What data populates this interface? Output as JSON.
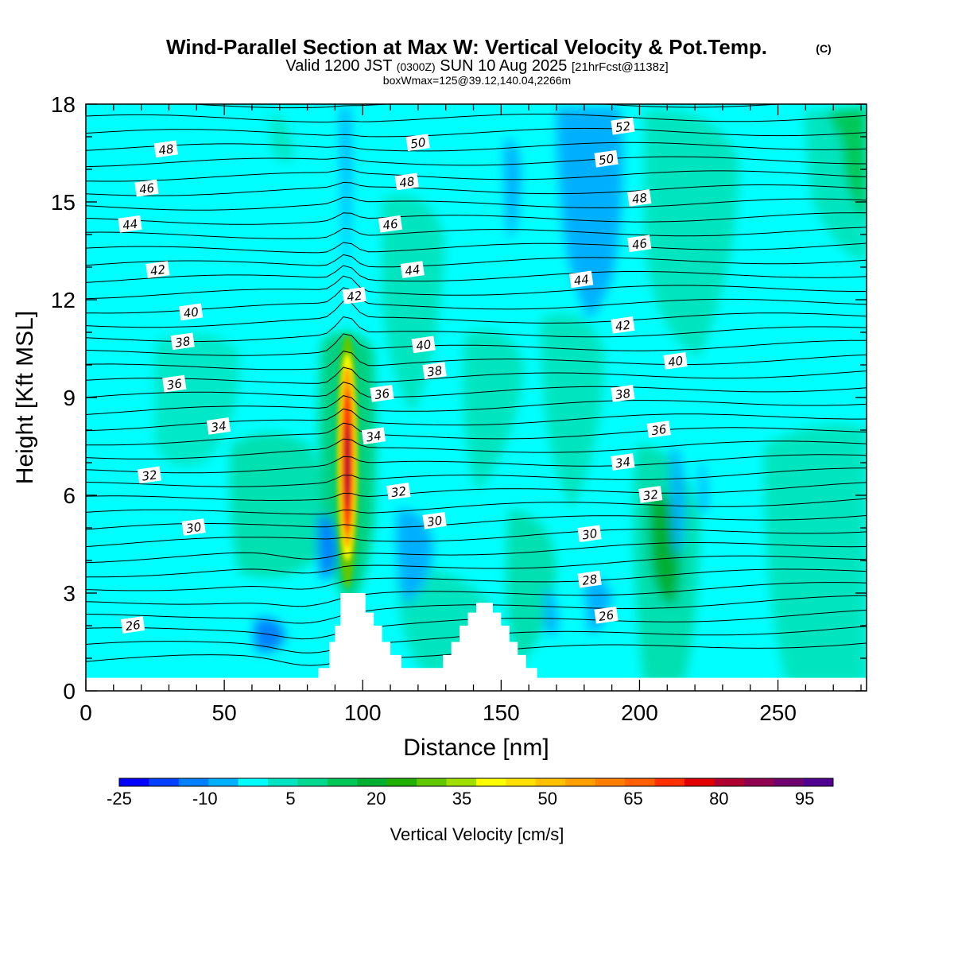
{
  "title": {
    "main": "Wind-Parallel Section at Max W: Vertical Velocity & Pot.Temp.",
    "copyright": "(C)",
    "valid_prefix": "Valid 1200 JST",
    "valid_utc": "(0300Z)",
    "valid_date": "SUN 10 Aug 2025",
    "forecast": "[21hrFcst@1138z]",
    "box_info": "boxWmax=125@39.12,140.04,2266m"
  },
  "chart_data": {
    "type": "heatmap",
    "title": "Wind-Parallel Section at Max W: Vertical Velocity & Pot.Temp.",
    "xlabel": "Distance [nm]",
    "ylabel": "Height [Kft MSL]",
    "xlim": [
      0,
      282
    ],
    "ylim": [
      0,
      18
    ],
    "x_ticks": [
      0,
      50,
      100,
      150,
      200,
      250
    ],
    "y_ticks": [
      0,
      3,
      6,
      9,
      12,
      15,
      18
    ],
    "colorbar": {
      "label": "Vertical Velocity [cm/s]",
      "ticks": [
        -25,
        -10,
        5,
        20,
        35,
        50,
        65,
        80,
        95
      ],
      "colors": [
        "#0000ff",
        "#0040ff",
        "#0080ff",
        "#00b0ff",
        "#00ffff",
        "#00e5c0",
        "#00d890",
        "#00c858",
        "#00b030",
        "#20b000",
        "#60c800",
        "#a0e000",
        "#ffff00",
        "#ffe000",
        "#ffc000",
        "#ffa000",
        "#ff8000",
        "#ff6000",
        "#ff3000",
        "#e00000",
        "#b00030",
        "#900050",
        "#700070",
        "#500090"
      ]
    },
    "terrain_profile": [
      [
        0,
        0.4
      ],
      [
        84,
        0.4
      ],
      [
        84,
        0.7
      ],
      [
        88,
        0.7
      ],
      [
        88,
        1.5
      ],
      [
        90,
        1.5
      ],
      [
        90,
        2.0
      ],
      [
        92,
        2.0
      ],
      [
        92,
        3.0
      ],
      [
        101,
        3.0
      ],
      [
        101,
        2.4
      ],
      [
        104,
        2.4
      ],
      [
        104,
        2.0
      ],
      [
        107,
        2.0
      ],
      [
        107,
        1.5
      ],
      [
        110,
        1.5
      ],
      [
        110,
        1.1
      ],
      [
        114,
        1.1
      ],
      [
        114,
        0.7
      ],
      [
        129,
        0.7
      ],
      [
        129,
        1.1
      ],
      [
        132,
        1.1
      ],
      [
        132,
        1.5
      ],
      [
        135,
        1.5
      ],
      [
        135,
        2.0
      ],
      [
        138,
        2.0
      ],
      [
        138,
        2.4
      ],
      [
        141,
        2.4
      ],
      [
        141,
        2.7
      ],
      [
        147,
        2.7
      ],
      [
        147,
        2.4
      ],
      [
        150,
        2.4
      ],
      [
        150,
        2.0
      ],
      [
        153,
        2.0
      ],
      [
        153,
        1.5
      ],
      [
        156,
        1.5
      ],
      [
        156,
        1.1
      ],
      [
        159,
        1.1
      ],
      [
        159,
        0.7
      ],
      [
        163,
        0.7
      ],
      [
        163,
        0.4
      ],
      [
        282,
        0.4
      ]
    ],
    "contour_labels": [
      {
        "text": "48",
        "x": 29,
        "y": 16.6
      },
      {
        "text": "46",
        "x": 22,
        "y": 15.4
      },
      {
        "text": "44",
        "x": 16,
        "y": 14.3
      },
      {
        "text": "42",
        "x": 26,
        "y": 12.9
      },
      {
        "text": "40",
        "x": 38,
        "y": 11.6
      },
      {
        "text": "38",
        "x": 35,
        "y": 10.7
      },
      {
        "text": "36",
        "x": 32,
        "y": 9.4
      },
      {
        "text": "34",
        "x": 48,
        "y": 8.1
      },
      {
        "text": "32",
        "x": 23,
        "y": 6.6
      },
      {
        "text": "30",
        "x": 39,
        "y": 5.0
      },
      {
        "text": "26",
        "x": 17,
        "y": 2.0
      },
      {
        "text": "50",
        "x": 120,
        "y": 16.8
      },
      {
        "text": "48",
        "x": 116,
        "y": 15.6
      },
      {
        "text": "46",
        "x": 110,
        "y": 14.3
      },
      {
        "text": "44",
        "x": 118,
        "y": 12.9
      },
      {
        "text": "42",
        "x": 97,
        "y": 12.1
      },
      {
        "text": "40",
        "x": 122,
        "y": 10.6
      },
      {
        "text": "38",
        "x": 126,
        "y": 9.8
      },
      {
        "text": "36",
        "x": 107,
        "y": 9.1
      },
      {
        "text": "34",
        "x": 104,
        "y": 7.8
      },
      {
        "text": "32",
        "x": 113,
        "y": 6.1
      },
      {
        "text": "30",
        "x": 126,
        "y": 5.2
      },
      {
        "text": "52",
        "x": 194,
        "y": 17.3
      },
      {
        "text": "50",
        "x": 188,
        "y": 16.3
      },
      {
        "text": "48",
        "x": 200,
        "y": 15.1
      },
      {
        "text": "46",
        "x": 200,
        "y": 13.7
      },
      {
        "text": "44",
        "x": 179,
        "y": 12.6
      },
      {
        "text": "42",
        "x": 194,
        "y": 11.2
      },
      {
        "text": "40",
        "x": 213,
        "y": 10.1
      },
      {
        "text": "38",
        "x": 194,
        "y": 9.1
      },
      {
        "text": "36",
        "x": 207,
        "y": 8.0
      },
      {
        "text": "34",
        "x": 194,
        "y": 7.0
      },
      {
        "text": "32",
        "x": 204,
        "y": 6.0
      },
      {
        "text": "30",
        "x": 182,
        "y": 4.8
      },
      {
        "text": "28",
        "x": 182,
        "y": 3.4
      },
      {
        "text": "26",
        "x": 188,
        "y": 2.3
      }
    ],
    "updraft_max": {
      "value": 125,
      "x": 94,
      "y": 6.5
    }
  },
  "colors": {
    "background_field": "#00ffff",
    "terrain": "#ffffff",
    "frame": "#000000"
  }
}
